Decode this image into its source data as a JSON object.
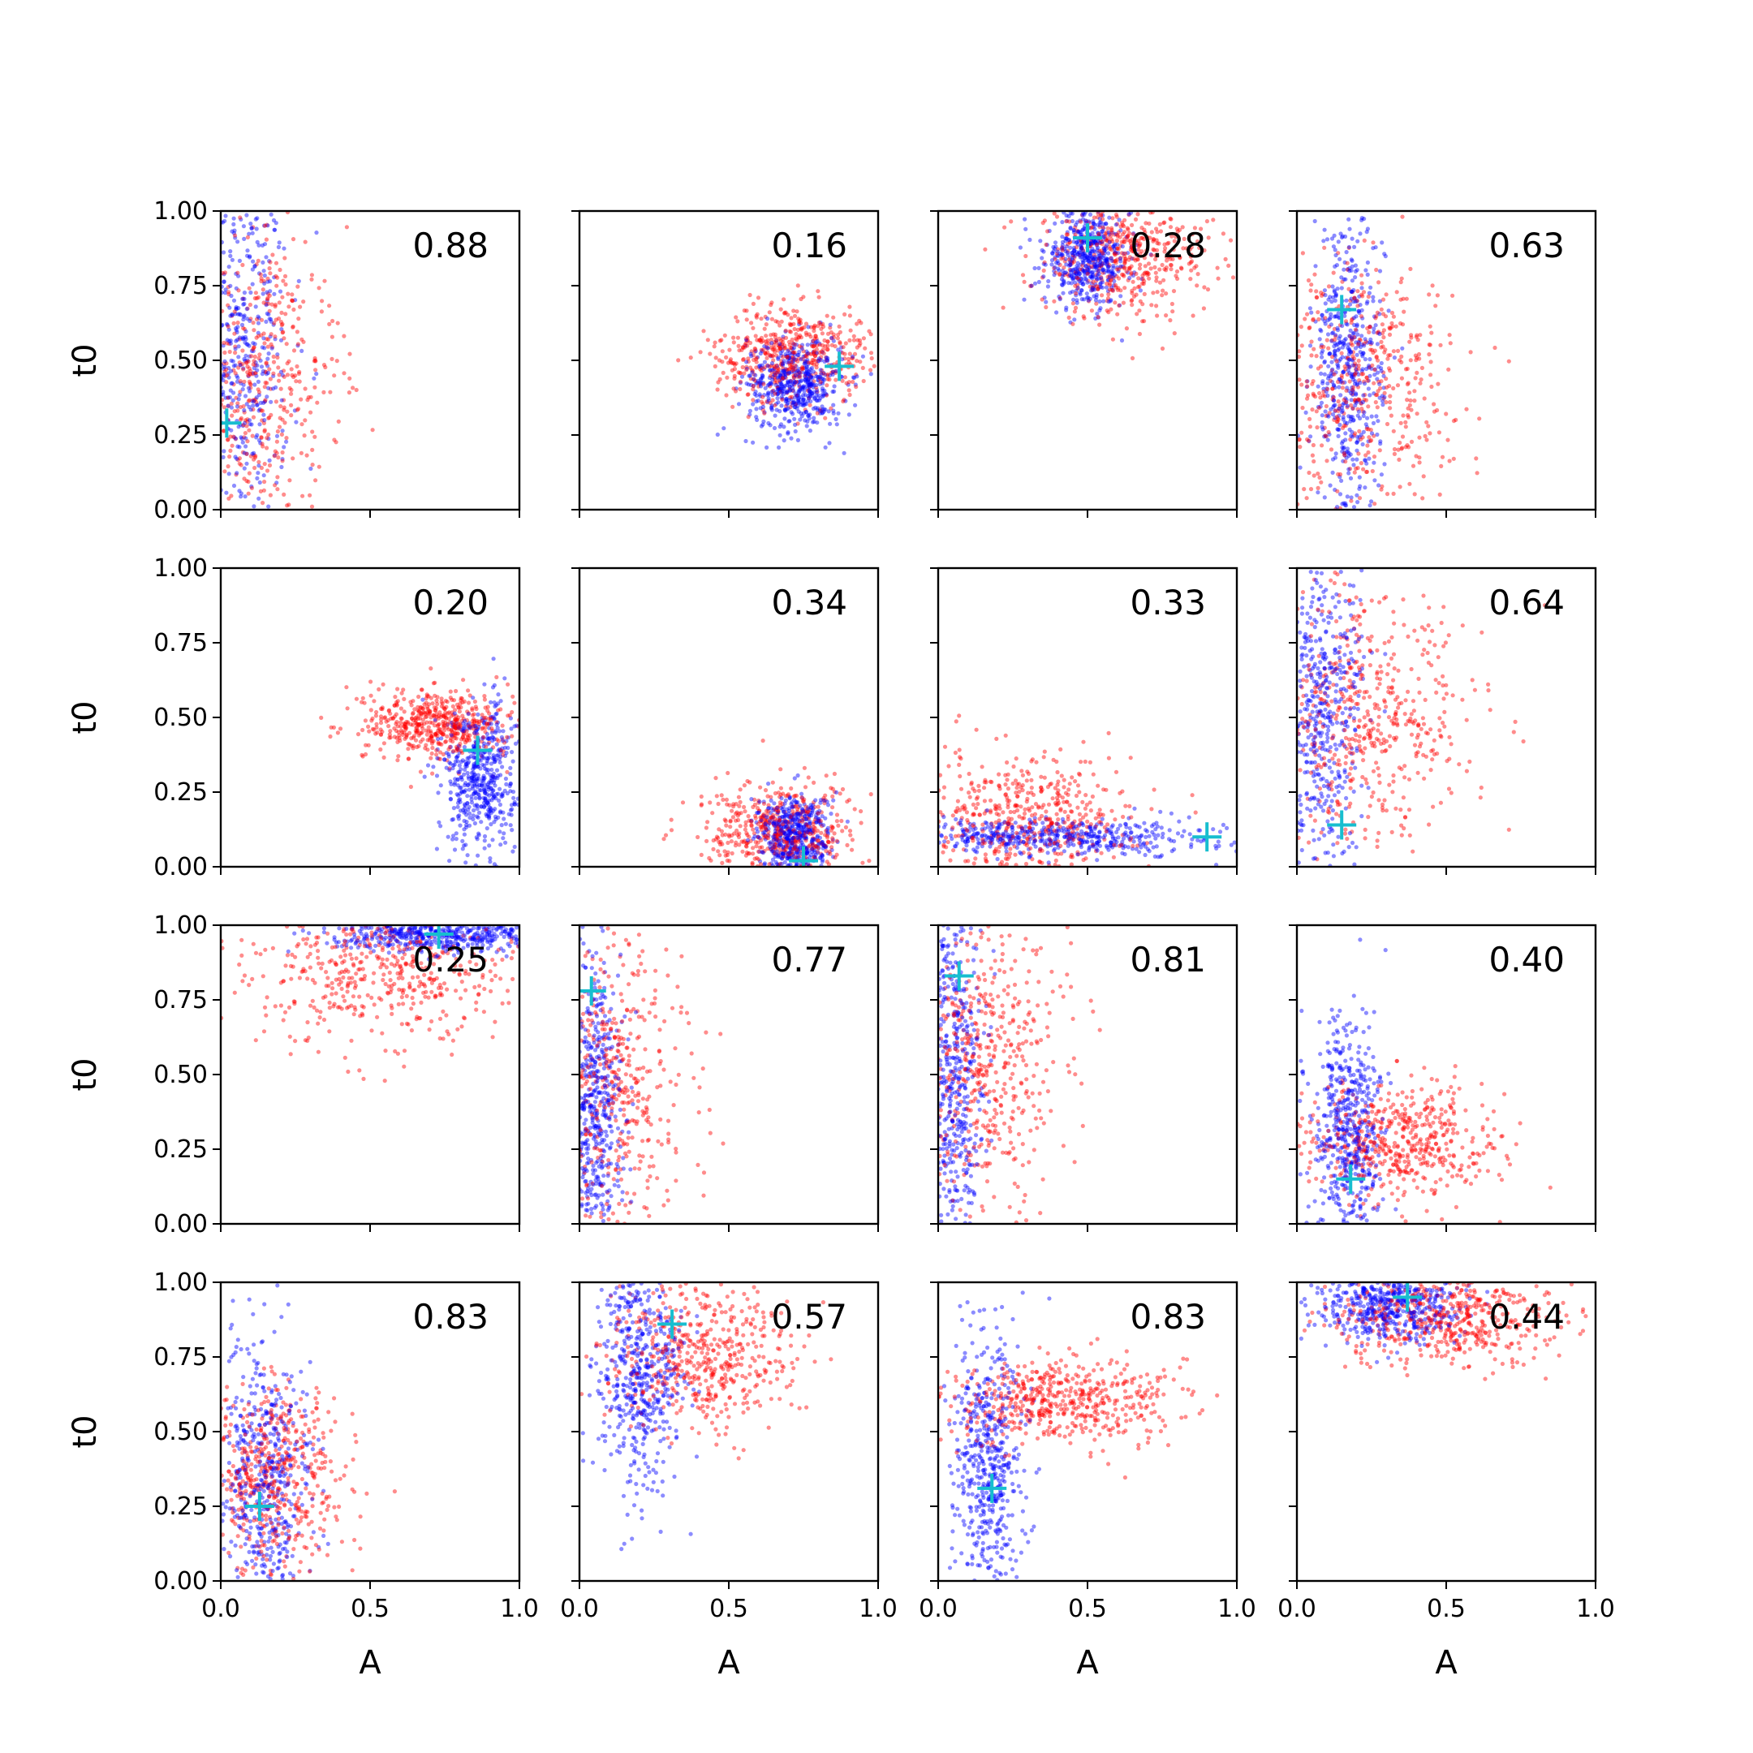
{
  "chart_data": {
    "type": "scatter",
    "grid": false,
    "rows": 4,
    "cols": 4,
    "xlabel": "A",
    "ylabel": "t0",
    "xlim": [
      0,
      1
    ],
    "ylim": [
      0,
      1
    ],
    "x_ticks": [
      "0.0",
      "0.5",
      "1.0"
    ],
    "y_ticks": [
      "0.00",
      "0.25",
      "0.50",
      "0.75",
      "1.00"
    ],
    "colors": {
      "red": "#ff0000",
      "blue": "#0000ff",
      "marker": "#17becf"
    },
    "panels": [
      {
        "annotation": "0.88",
        "marker": [
          0.02,
          0.29
        ],
        "blue": {
          "cx": 0.05,
          "cy": 0.5,
          "sx": 0.09,
          "sy": 0.32
        },
        "red": {
          "cx": 0.12,
          "cy": 0.45,
          "sx": 0.14,
          "sy": 0.25
        }
      },
      {
        "annotation": "0.16",
        "marker": [
          0.87,
          0.48
        ],
        "blue": {
          "cx": 0.72,
          "cy": 0.42,
          "sx": 0.08,
          "sy": 0.08
        },
        "red": {
          "cx": 0.72,
          "cy": 0.52,
          "sx": 0.13,
          "sy": 0.08
        }
      },
      {
        "annotation": "0.28",
        "marker": [
          0.5,
          0.91
        ],
        "blue": {
          "cx": 0.5,
          "cy": 0.84,
          "sx": 0.07,
          "sy": 0.08
        },
        "red": {
          "cx": 0.62,
          "cy": 0.85,
          "sx": 0.15,
          "sy": 0.1
        }
      },
      {
        "annotation": "0.63",
        "marker": [
          0.15,
          0.67
        ],
        "blue": {
          "cx": 0.17,
          "cy": 0.45,
          "sx": 0.06,
          "sy": 0.25
        },
        "red": {
          "cx": 0.22,
          "cy": 0.42,
          "sx": 0.15,
          "sy": 0.22
        }
      },
      {
        "annotation": "0.20",
        "marker": [
          0.86,
          0.39
        ],
        "blue": {
          "cx": 0.87,
          "cy": 0.3,
          "sx": 0.06,
          "sy": 0.12
        },
        "red": {
          "cx": 0.72,
          "cy": 0.48,
          "sx": 0.12,
          "sy": 0.06
        }
      },
      {
        "annotation": "0.34",
        "marker": [
          0.75,
          0.02
        ],
        "blue": {
          "cx": 0.72,
          "cy": 0.1,
          "sx": 0.06,
          "sy": 0.07
        },
        "red": {
          "cx": 0.67,
          "cy": 0.12,
          "sx": 0.13,
          "sy": 0.08
        }
      },
      {
        "annotation": "0.33",
        "marker": [
          0.9,
          0.1
        ],
        "blue": {
          "cx": 0.4,
          "cy": 0.1,
          "sx": 0.28,
          "sy": 0.03
        },
        "red": {
          "cx": 0.28,
          "cy": 0.17,
          "sx": 0.18,
          "sy": 0.1
        }
      },
      {
        "annotation": "0.64",
        "marker": [
          0.15,
          0.14
        ],
        "blue": {
          "cx": 0.08,
          "cy": 0.5,
          "sx": 0.07,
          "sy": 0.28
        },
        "red": {
          "cx": 0.25,
          "cy": 0.5,
          "sx": 0.18,
          "sy": 0.22
        }
      },
      {
        "annotation": "0.25",
        "marker": [
          0.73,
          0.97
        ],
        "blue": {
          "cx": 0.75,
          "cy": 0.97,
          "sx": 0.18,
          "sy": 0.03
        },
        "red": {
          "cx": 0.55,
          "cy": 0.85,
          "sx": 0.22,
          "sy": 0.12
        }
      },
      {
        "annotation": "0.77",
        "marker": [
          0.04,
          0.78
        ],
        "blue": {
          "cx": 0.05,
          "cy": 0.4,
          "sx": 0.05,
          "sy": 0.28
        },
        "red": {
          "cx": 0.12,
          "cy": 0.45,
          "sx": 0.12,
          "sy": 0.27
        }
      },
      {
        "annotation": "0.81",
        "marker": [
          0.07,
          0.83
        ],
        "blue": {
          "cx": 0.05,
          "cy": 0.5,
          "sx": 0.05,
          "sy": 0.3
        },
        "red": {
          "cx": 0.15,
          "cy": 0.55,
          "sx": 0.13,
          "sy": 0.25
        }
      },
      {
        "annotation": "0.40",
        "marker": [
          0.18,
          0.15
        ],
        "blue": {
          "cx": 0.17,
          "cy": 0.3,
          "sx": 0.06,
          "sy": 0.2
        },
        "red": {
          "cx": 0.35,
          "cy": 0.27,
          "sx": 0.16,
          "sy": 0.1
        }
      },
      {
        "annotation": "0.83",
        "marker": [
          0.13,
          0.25
        ],
        "blue": {
          "cx": 0.15,
          "cy": 0.3,
          "sx": 0.08,
          "sy": 0.25
        },
        "red": {
          "cx": 0.18,
          "cy": 0.35,
          "sx": 0.12,
          "sy": 0.16
        }
      },
      {
        "annotation": "0.57",
        "marker": [
          0.31,
          0.86
        ],
        "blue": {
          "cx": 0.2,
          "cy": 0.7,
          "sx": 0.07,
          "sy": 0.2
        },
        "red": {
          "cx": 0.42,
          "cy": 0.76,
          "sx": 0.16,
          "sy": 0.12
        }
      },
      {
        "annotation": "0.83",
        "marker": [
          0.18,
          0.31
        ],
        "blue": {
          "cx": 0.17,
          "cy": 0.4,
          "sx": 0.06,
          "sy": 0.23
        },
        "red": {
          "cx": 0.42,
          "cy": 0.6,
          "sx": 0.2,
          "sy": 0.07
        }
      },
      {
        "annotation": "0.44",
        "marker": [
          0.37,
          0.95
        ],
        "blue": {
          "cx": 0.3,
          "cy": 0.92,
          "sx": 0.12,
          "sy": 0.06
        },
        "red": {
          "cx": 0.5,
          "cy": 0.88,
          "sx": 0.18,
          "sy": 0.08
        }
      }
    ]
  }
}
